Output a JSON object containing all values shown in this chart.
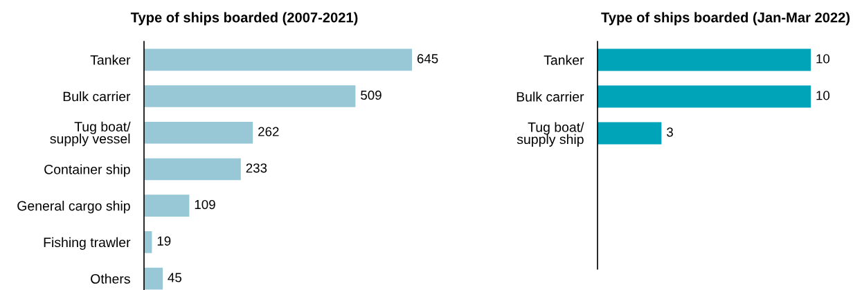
{
  "chart_data": [
    {
      "type": "bar",
      "orientation": "horizontal",
      "title": "Type of ships boarded (2007-2021)",
      "categories": [
        "Tanker",
        "Bulk carrier",
        "Tug boat/\nsupply vessel",
        "Container ship",
        "General cargo ship",
        "Fishing trawler",
        "Others"
      ],
      "values": [
        645,
        509,
        262,
        233,
        109,
        19,
        45
      ],
      "color": "#98c8d6",
      "data_labels": true,
      "tick_labels": "y"
    },
    {
      "type": "bar",
      "orientation": "horizontal",
      "title": "Type of ships boarded (Jan-Mar 2022)",
      "categories": [
        "Tanker",
        "Bulk carrier",
        "Tug boat/\nsupply ship"
      ],
      "values": [
        10,
        10,
        3
      ],
      "color": "#00a4b8",
      "data_labels": true,
      "tick_labels": "y"
    }
  ]
}
